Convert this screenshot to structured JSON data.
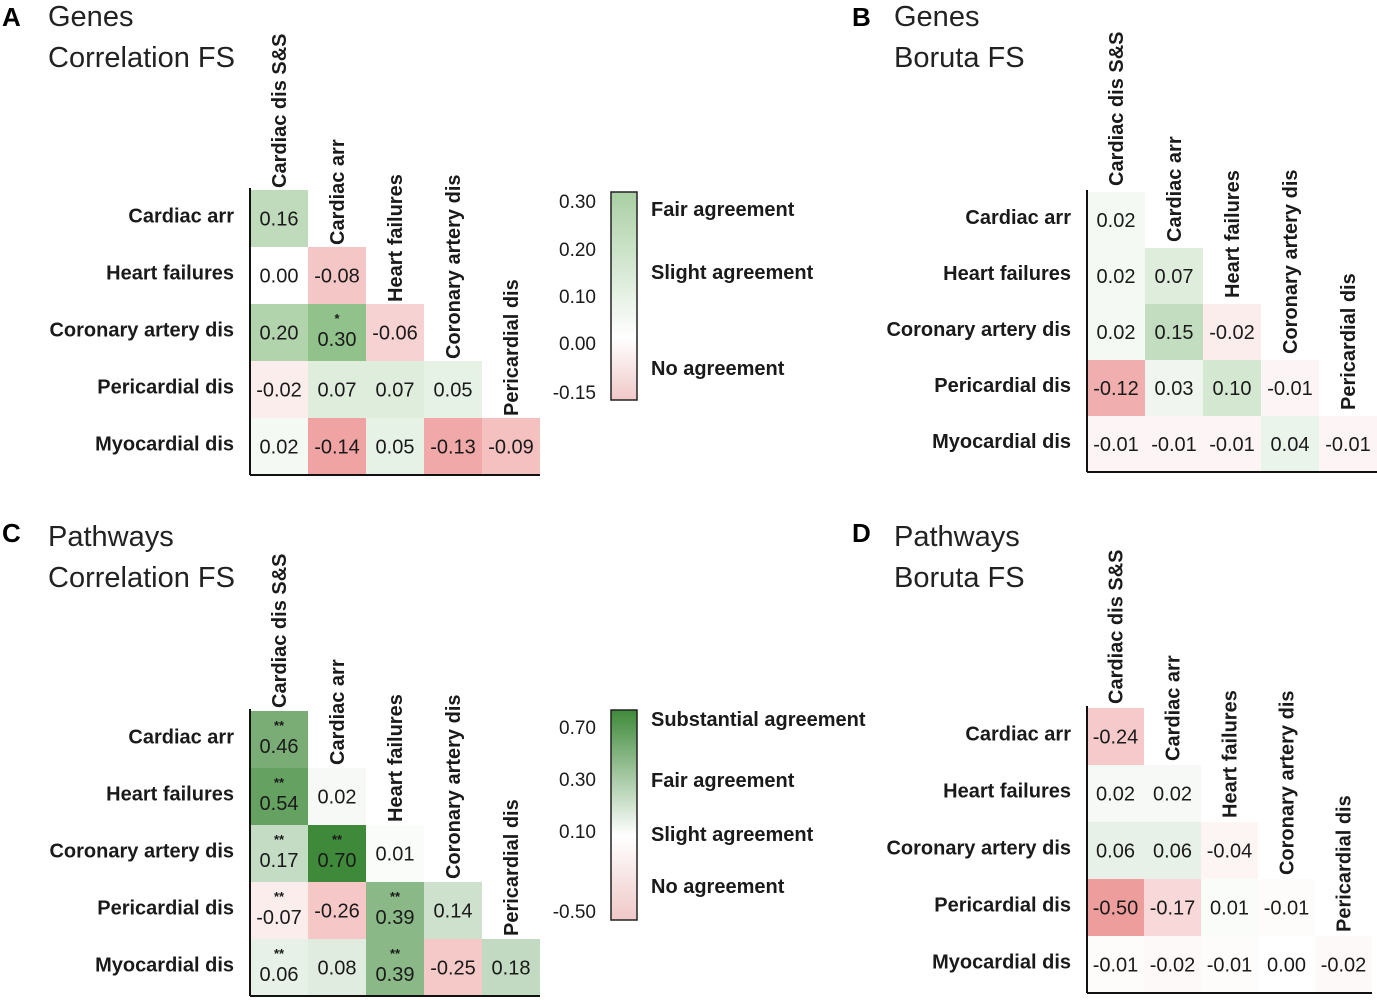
{
  "chart_data": [
    {
      "type": "heatmap",
      "panel": "A",
      "title_lines": [
        "Genes",
        "Correlation FS"
      ],
      "columns": [
        "Cardiac dis S&S",
        "Cardiac arr",
        "Heart failures",
        "Coronary artery dis",
        "Pericardial dis"
      ],
      "rows": [
        "Cardiac arr",
        "Heart failures",
        "Coronary artery dis",
        "Pericardial dis",
        "Myocardial dis"
      ],
      "values": [
        [
          0.16
        ],
        [
          0.0,
          -0.08
        ],
        [
          0.2,
          0.3,
          -0.06
        ],
        [
          -0.02,
          0.07,
          0.07,
          0.05
        ],
        [
          0.02,
          -0.14,
          0.05,
          -0.13,
          -0.09
        ]
      ],
      "labels": [
        [
          "0.16"
        ],
        [
          "0.00",
          "-0.08"
        ],
        [
          "0.20",
          "0.30",
          "-0.06"
        ],
        [
          "-0.02",
          "0.07",
          "0.07",
          "0.05"
        ],
        [
          "0.02",
          "-0.14",
          "0.05",
          "-0.13",
          "-0.09"
        ]
      ],
      "significance": [
        [
          ""
        ],
        [
          "",
          ""
        ],
        [
          "",
          "*",
          ""
        ],
        [
          "",
          "",
          "",
          ""
        ],
        [
          "",
          "",
          "",
          "",
          ""
        ]
      ],
      "color_range": [
        -0.15,
        0.3
      ],
      "colorbar": {
        "ticks": [
          "0.30",
          "0.20",
          "0.10",
          "0.00",
          "-0.15"
        ],
        "levels": [
          "Fair agreement",
          "Slight agreement",
          "No agreement"
        ]
      }
    },
    {
      "type": "heatmap",
      "panel": "B",
      "title_lines": [
        "Genes",
        "Boruta FS"
      ],
      "columns": [
        "Cardiac dis S&S",
        "Cardiac arr",
        "Heart failures",
        "Coronary artery dis",
        "Pericardial dis"
      ],
      "rows": [
        "Cardiac arr",
        "Heart failures",
        "Coronary artery dis",
        "Pericardial dis",
        "Myocardial dis"
      ],
      "values": [
        [
          0.02
        ],
        [
          0.02,
          0.07
        ],
        [
          0.02,
          0.15,
          -0.02
        ],
        [
          -0.12,
          0.03,
          0.1,
          -0.01
        ],
        [
          -0.01,
          -0.01,
          -0.01,
          0.04,
          -0.01
        ]
      ],
      "labels": [
        [
          "0.02"
        ],
        [
          "0.02",
          "0.07"
        ],
        [
          "0.02",
          "0.15",
          "-0.02"
        ],
        [
          "-0.12",
          "0.03",
          "0.10",
          "-0.01"
        ],
        [
          "-0.01",
          "-0.01",
          "-0.01",
          "0.04",
          "-0.01"
        ]
      ],
      "significance": [
        [
          ""
        ],
        [
          "",
          ""
        ],
        [
          "",
          "",
          ""
        ],
        [
          "",
          "",
          "",
          ""
        ],
        [
          "",
          "",
          "",
          "",
          ""
        ]
      ],
      "color_range": [
        -0.15,
        0.3
      ]
    },
    {
      "type": "heatmap",
      "panel": "C",
      "title_lines": [
        "Pathways",
        "Correlation FS"
      ],
      "columns": [
        "Cardiac dis S&S",
        "Cardiac arr",
        "Heart failures",
        "Coronary artery dis",
        "Pericardial dis"
      ],
      "rows": [
        "Cardiac arr",
        "Heart failures",
        "Coronary artery dis",
        "Pericardial dis",
        "Myocardial dis"
      ],
      "values": [
        [
          0.46
        ],
        [
          0.54,
          0.02
        ],
        [
          0.17,
          0.7,
          0.01
        ],
        [
          -0.07,
          -0.26,
          0.39,
          0.14
        ],
        [
          0.06,
          0.08,
          0.39,
          -0.25,
          0.18
        ]
      ],
      "labels": [
        [
          "0.46"
        ],
        [
          "0.54",
          "0.02"
        ],
        [
          "0.17",
          "0.70",
          "0.01"
        ],
        [
          "-0.07",
          "-0.26",
          "0.39",
          "0.14"
        ],
        [
          "0.06",
          "0.08",
          "0.39",
          "-0.25",
          "0.18"
        ]
      ],
      "significance": [
        [
          "**"
        ],
        [
          "**",
          ""
        ],
        [
          "**",
          "**",
          ""
        ],
        [
          "**",
          "",
          "**",
          ""
        ],
        [
          "**",
          "",
          "**",
          "",
          ""
        ]
      ],
      "color_range": [
        -0.5,
        0.7
      ],
      "colorbar": {
        "ticks": [
          "0.70",
          "0.30",
          "0.10",
          "-0.50"
        ],
        "levels": [
          "Substantial agreement",
          "Fair agreement",
          "Slight agreement",
          "No agreement"
        ]
      }
    },
    {
      "type": "heatmap",
      "panel": "D",
      "title_lines": [
        "Pathways",
        "Boruta FS"
      ],
      "columns": [
        "Cardiac dis S&S",
        "Cardiac arr",
        "Heart failures",
        "Coronary artery dis",
        "Pericardial dis"
      ],
      "rows": [
        "Cardiac arr",
        "Heart failures",
        "Coronary artery dis",
        "Pericardial dis",
        "Myocardial dis"
      ],
      "values": [
        [
          -0.24
        ],
        [
          0.02,
          0.02
        ],
        [
          0.06,
          0.06,
          -0.04
        ],
        [
          -0.5,
          -0.17,
          0.01,
          -0.01
        ],
        [
          -0.01,
          -0.02,
          -0.01,
          0.0,
          -0.02
        ]
      ],
      "labels": [
        [
          "-0.24"
        ],
        [
          "0.02",
          "0.02"
        ],
        [
          "0.06",
          "0.06",
          "-0.04"
        ],
        [
          "-0.50",
          "-0.17",
          "0.01",
          "-0.01"
        ],
        [
          "-0.01",
          "-0.02",
          "-0.01",
          "0.00",
          "-0.02"
        ]
      ],
      "significance": [
        [
          ""
        ],
        [
          "",
          ""
        ],
        [
          "",
          "",
          ""
        ],
        [
          "",
          "",
          "",
          ""
        ],
        [
          "",
          "",
          "",
          "",
          ""
        ]
      ],
      "color_range": [
        -0.5,
        0.7
      ]
    }
  ]
}
